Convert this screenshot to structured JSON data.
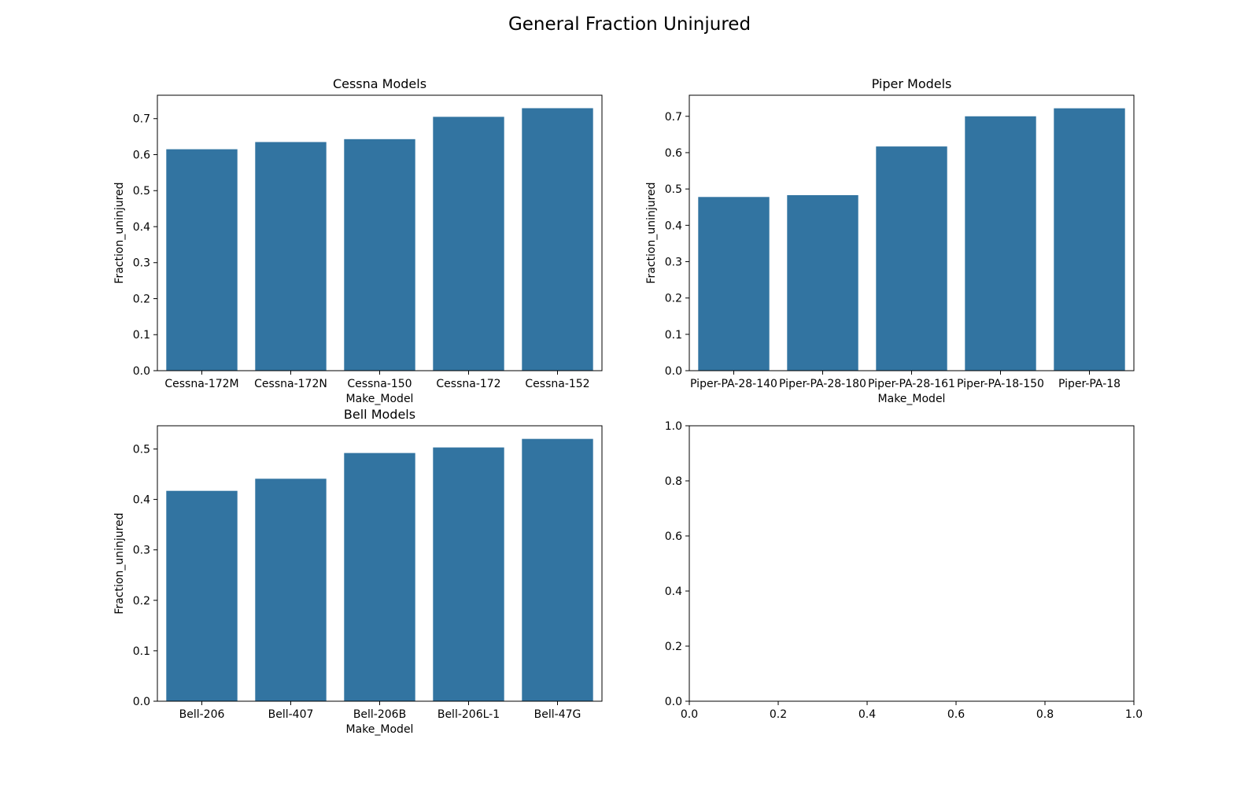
{
  "figure_title": "General Fraction Uninjured",
  "colors": {
    "bar": "#3274a1",
    "axis": "#000000",
    "background": "#ffffff"
  },
  "chart_data": [
    {
      "type": "bar",
      "title": "Cessna Models",
      "xlabel": "Make_Model",
      "ylabel": "Fraction_uninjured",
      "categories": [
        "Cessna-172M",
        "Cessna-172N",
        "Cessna-150",
        "Cessna-172",
        "Cessna-152"
      ],
      "values": [
        0.615,
        0.635,
        0.643,
        0.705,
        0.729
      ],
      "ylim": [
        0,
        0.765
      ],
      "yticks": [
        0.0,
        0.1,
        0.2,
        0.3,
        0.4,
        0.5,
        0.6,
        0.7
      ],
      "ytick_labels": [
        "0.0",
        "0.1",
        "0.2",
        "0.3",
        "0.4",
        "0.5",
        "0.6",
        "0.7"
      ],
      "grid": false
    },
    {
      "type": "bar",
      "title": "Piper Models",
      "xlabel": "Make_Model",
      "ylabel": "Fraction_uninjured",
      "categories": [
        "Piper-PA-28-140",
        "Piper-PA-28-180",
        "Piper-PA-28-161",
        "Piper-PA-18-150",
        "Piper-PA-18"
      ],
      "values": [
        0.478,
        0.483,
        0.617,
        0.7,
        0.722
      ],
      "ylim": [
        0,
        0.758
      ],
      "yticks": [
        0.0,
        0.1,
        0.2,
        0.3,
        0.4,
        0.5,
        0.6,
        0.7
      ],
      "ytick_labels": [
        "0.0",
        "0.1",
        "0.2",
        "0.3",
        "0.4",
        "0.5",
        "0.6",
        "0.7"
      ],
      "grid": false
    },
    {
      "type": "bar",
      "title": "Bell Models",
      "xlabel": "Make_Model",
      "ylabel": "Fraction_uninjured",
      "categories": [
        "Bell-206",
        "Bell-407",
        "Bell-206B",
        "Bell-206L-1",
        "Bell-47G"
      ],
      "values": [
        0.417,
        0.441,
        0.492,
        0.503,
        0.52
      ],
      "ylim": [
        0,
        0.546
      ],
      "yticks": [
        0.0,
        0.1,
        0.2,
        0.3,
        0.4,
        0.5
      ],
      "ytick_labels": [
        "0.0",
        "0.1",
        "0.2",
        "0.3",
        "0.4",
        "0.5"
      ],
      "grid": false
    },
    {
      "type": "bar",
      "title": "",
      "xlabel": "",
      "ylabel": "",
      "categories": [],
      "values": [],
      "xlim": [
        0,
        1
      ],
      "ylim": [
        0,
        1
      ],
      "xticks": [
        0.0,
        0.2,
        0.4,
        0.6,
        0.8,
        1.0
      ],
      "xtick_labels": [
        "0.0",
        "0.2",
        "0.4",
        "0.6",
        "0.8",
        "1.0"
      ],
      "yticks": [
        0.0,
        0.2,
        0.4,
        0.6,
        0.8,
        1.0
      ],
      "ytick_labels": [
        "0.0",
        "0.2",
        "0.4",
        "0.6",
        "0.8",
        "1.0"
      ],
      "grid": false
    }
  ]
}
